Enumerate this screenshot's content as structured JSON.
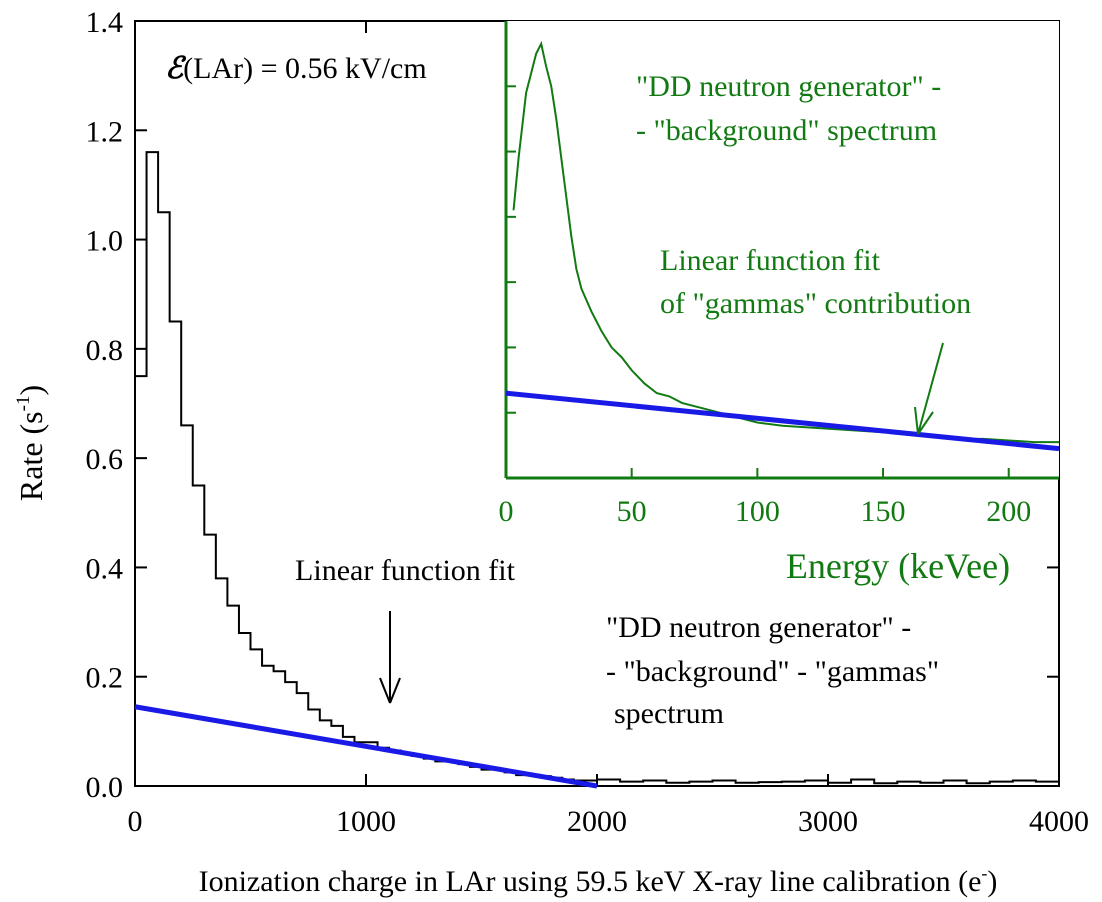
{
  "chart_data": [
    {
      "type": "line",
      "title": "",
      "xlabel": "Ionization charge in LAr using 59.5 keV X-ray line calibration (e",
      "xlabel_sup": "-",
      "xlabel_close": ")",
      "ylabel": "Rate (s",
      "ylabel_sup": "-1",
      "ylabel_close": ")",
      "xlim": [
        0,
        4000
      ],
      "ylim": [
        0.0,
        1.4
      ],
      "xticks": [
        0,
        1000,
        2000,
        3000,
        4000
      ],
      "xtick_labels": [
        "0",
        "1000",
        "2000",
        "3000",
        "4000"
      ],
      "yticks": [
        0.0,
        0.2,
        0.4,
        0.6,
        0.8,
        1.0,
        1.2,
        1.4
      ],
      "ytick_labels": [
        "0.0",
        "0.2",
        "0.4",
        "0.6",
        "0.8",
        "1.0",
        "1.2",
        "1.4"
      ],
      "grid": false,
      "series": [
        {
          "name": "\"DD neutron generator\" - \"background\" - \"gammas\" spectrum",
          "style": "step",
          "color": "#000000",
          "x": [
            0,
            50,
            100,
            150,
            200,
            250,
            300,
            350,
            400,
            450,
            500,
            550,
            600,
            650,
            700,
            750,
            800,
            850,
            900,
            950,
            1000,
            1050,
            1100,
            1150,
            1200,
            1250,
            1300,
            1350,
            1400,
            1450,
            1500,
            1550,
            1600,
            1650,
            1700,
            1750,
            1800,
            1850,
            1900,
            1950,
            2000,
            2100,
            2200,
            2300,
            2400,
            2500,
            2600,
            2700,
            2800,
            2900,
            3000,
            3100,
            3200,
            3300,
            3400,
            3500,
            3600,
            3700,
            3800,
            3900
          ],
          "y": [
            0.75,
            1.16,
            1.05,
            0.85,
            0.66,
            0.55,
            0.46,
            0.38,
            0.33,
            0.28,
            0.25,
            0.22,
            0.21,
            0.19,
            0.17,
            0.14,
            0.12,
            0.11,
            0.09,
            0.08,
            0.08,
            0.07,
            0.065,
            0.06,
            0.055,
            0.05,
            0.045,
            0.045,
            0.04,
            0.035,
            0.03,
            0.03,
            0.025,
            0.02,
            0.02,
            0.018,
            0.015,
            0.012,
            0.01,
            0.01,
            0.012,
            0.008,
            0.01,
            0.006,
            0.008,
            0.01,
            0.006,
            0.007,
            0.008,
            0.01,
            0.006,
            0.012,
            0.005,
            0.008,
            0.006,
            0.01,
            0.005,
            0.008,
            0.01,
            0.008
          ]
        },
        {
          "name": "Linear function fit",
          "style": "line",
          "color": "#1a1ae6",
          "x": [
            0,
            2000
          ],
          "y": [
            0.145,
            0.0
          ]
        }
      ],
      "annotations": [
        {
          "text": "Linear function fit",
          "arrow_to": [
            1080,
            0.18
          ]
        }
      ],
      "field_label": {
        "symbol": "ℰ",
        "text": "(LAr) = 0.56 kV/cm"
      },
      "legend_lines": [
        "\"DD neutron generator\" -",
        "- \"background\" - \"gammas\"",
        " spectrum"
      ]
    },
    {
      "type": "line",
      "title": "",
      "xlabel": "Energy (keVee)",
      "ylabel": "",
      "xlim": [
        0,
        220
      ],
      "xticks": [
        0,
        50,
        100,
        150,
        200
      ],
      "xtick_labels": [
        "0",
        "50",
        "100",
        "150",
        "200"
      ],
      "ytick_labels": [],
      "color": "#127a12",
      "grid": false,
      "series": [
        {
          "name": "\"DD neutron generator\" - \"background\" spectrum",
          "style": "line",
          "color": "#127a12",
          "x": [
            3,
            5,
            8,
            10,
            12,
            14,
            16,
            18,
            20,
            22,
            24,
            26,
            28,
            30,
            34,
            38,
            42,
            46,
            50,
            55,
            60,
            65,
            70,
            75,
            80,
            85,
            90,
            95,
            100,
            110,
            120,
            130,
            140,
            150,
            160,
            170,
            180,
            190,
            200,
            210,
            220
          ],
          "y": [
            0.82,
            0.98,
            1.18,
            1.24,
            1.3,
            1.33,
            1.26,
            1.2,
            1.1,
            0.98,
            0.86,
            0.74,
            0.64,
            0.58,
            0.51,
            0.45,
            0.4,
            0.37,
            0.33,
            0.29,
            0.26,
            0.25,
            0.23,
            0.22,
            0.21,
            0.2,
            0.19,
            0.18,
            0.17,
            0.16,
            0.155,
            0.15,
            0.145,
            0.14,
            0.135,
            0.13,
            0.12,
            0.12,
            0.115,
            0.11,
            0.11
          ]
        },
        {
          "name": "Linear function fit of \"gammas\" contribution",
          "style": "line",
          "color": "#1a1ae6",
          "x": [
            0,
            220
          ],
          "y": [
            0.26,
            0.09
          ]
        }
      ],
      "annotations": [
        {
          "text": "Linear function fit of \"gammas\" contribution",
          "arrow_to": [
            165,
            0.2
          ]
        }
      ],
      "legend_lines": [
        "\"DD neutron generator\" -",
        "- \"background\" spectrum"
      ],
      "fit_label_lines": [
        "Linear function fit",
        "of \"gammas\" contribution"
      ]
    }
  ]
}
